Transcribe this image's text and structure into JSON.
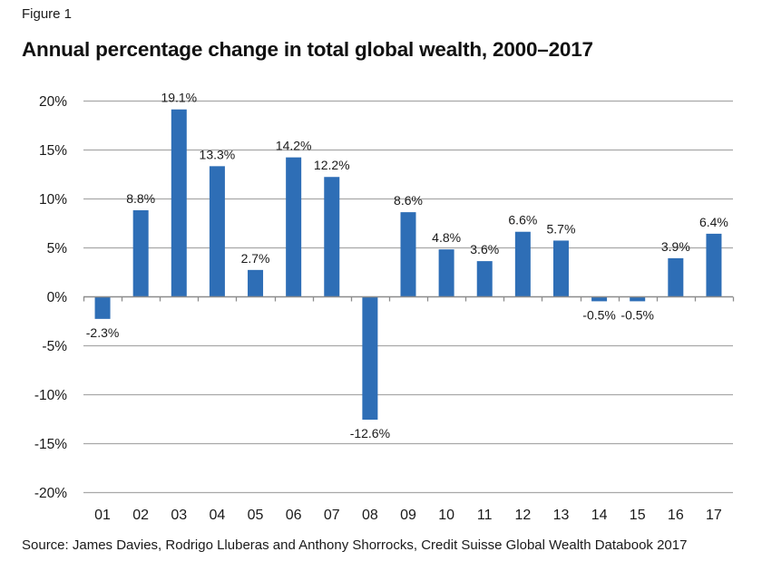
{
  "figure_label": "Figure 1",
  "source": "Source: James Davies, Rodrigo Lluberas and Anthony Shorrocks, Credit Suisse Global Wealth Databook 2017",
  "colors": {
    "bar": "#2e6eb6",
    "grid": "#a8a8a8",
    "axis": "#8c8c8c"
  },
  "chart_data": {
    "type": "bar",
    "title": "Annual percentage change in total global wealth, 2000–2017",
    "xlabel": "",
    "ylabel": "",
    "categories": [
      "01",
      "02",
      "03",
      "04",
      "05",
      "06",
      "07",
      "08",
      "09",
      "10",
      "11",
      "12",
      "13",
      "14",
      "15",
      "16",
      "17"
    ],
    "values": [
      -2.3,
      8.8,
      19.1,
      13.3,
      2.7,
      14.2,
      12.2,
      -12.6,
      8.6,
      4.8,
      3.6,
      6.6,
      5.7,
      -0.5,
      -0.5,
      3.9,
      6.4
    ],
    "data_labels": [
      "-2.3%",
      "8.8%",
      "19.1%",
      "13.3%",
      "2.7%",
      "14.2%",
      "12.2%",
      "-12.6%",
      "8.6%",
      "4.8%",
      "3.6%",
      "6.6%",
      "5.7%",
      "-0.5%",
      "-0.5%",
      "3.9%",
      "6.4%"
    ],
    "ylim": [
      -20,
      20
    ],
    "yticks": [
      20,
      15,
      10,
      5,
      0,
      -5,
      -10,
      -15,
      -20
    ],
    "ytick_labels": [
      "20%",
      "15%",
      "10%",
      "5%",
      "0%",
      "-5%",
      "-10%",
      "-15%",
      "-20%"
    ],
    "grid": true,
    "legend": "none"
  }
}
